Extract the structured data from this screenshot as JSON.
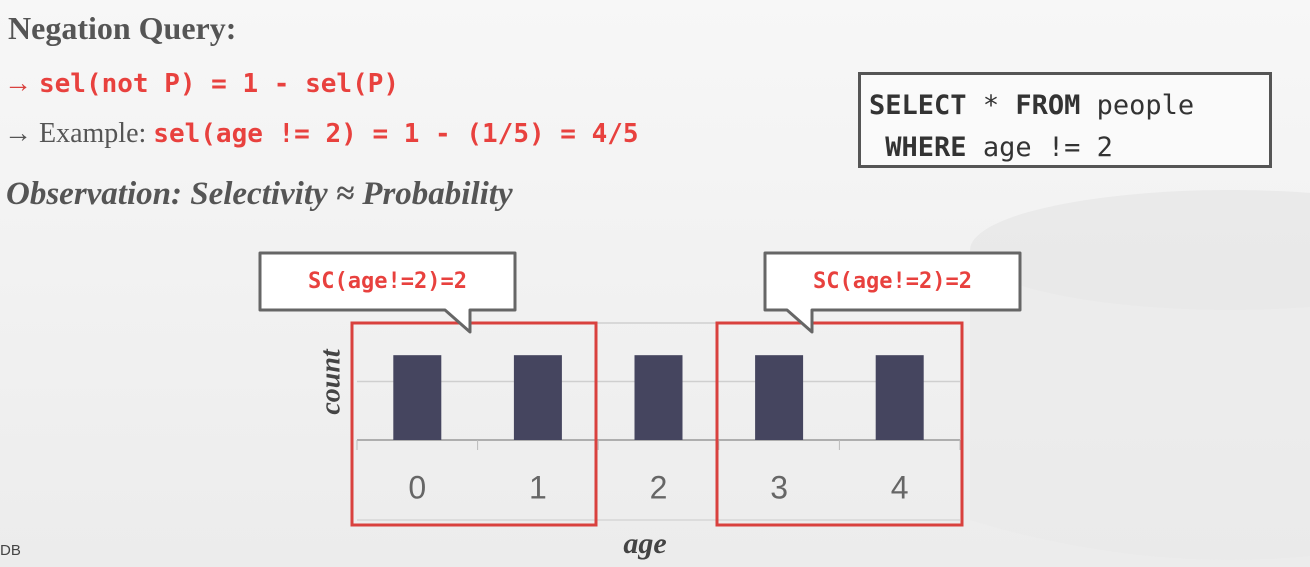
{
  "header": {
    "title": "Negation Query:"
  },
  "bullets": [
    {
      "arrow": "→",
      "text": "sel(not P) = 1 - sel(P)"
    },
    {
      "arrow": "→",
      "label": "Example:",
      "text": "sel(age != 2) = 1 - (1/5) = 4/5"
    }
  ],
  "observation": "Observation: Selectivity ≈ Probability",
  "sql": {
    "line1": {
      "keyword1": "SELECT",
      "star": "*",
      "keyword2": "FROM",
      "table": "people"
    },
    "line2": {
      "keyword": "WHERE",
      "condition": "age != 2"
    }
  },
  "callouts": [
    "SC(age!=2)=2",
    "SC(age!=2)=2"
  ],
  "footer": "DB",
  "chart_data": {
    "type": "bar",
    "x_label": "age",
    "y_label": "count",
    "categories": [
      "0",
      "1",
      "2",
      "3",
      "4"
    ],
    "values": [
      1.45,
      1.45,
      1.45,
      1.45,
      1.45
    ],
    "color": "#45455f",
    "ylim": [
      0,
      2
    ],
    "yticks": [
      0,
      1,
      2
    ],
    "grid": true
  }
}
